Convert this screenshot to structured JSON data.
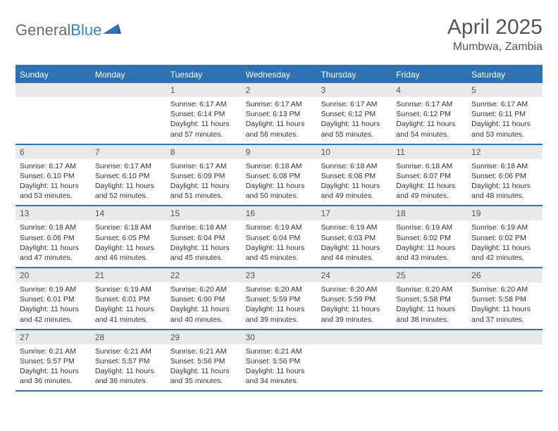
{
  "brand": {
    "name_a": "General",
    "name_b": "Blue"
  },
  "title": "April 2025",
  "location": "Mumbwa, Zambia",
  "colors": {
    "header_bg": "#2f72b3",
    "header_text": "#ffffff",
    "daynum_bg": "#e9e9e9",
    "border": "#2f72b3",
    "title_color": "#555555",
    "body_text": "#333333"
  },
  "day_headers": [
    "Sunday",
    "Monday",
    "Tuesday",
    "Wednesday",
    "Thursday",
    "Friday",
    "Saturday"
  ],
  "weeks": [
    [
      null,
      null,
      {
        "n": "1",
        "sr": "6:17 AM",
        "ss": "6:14 PM",
        "dl": "11 hours and 57 minutes."
      },
      {
        "n": "2",
        "sr": "6:17 AM",
        "ss": "6:13 PM",
        "dl": "11 hours and 56 minutes."
      },
      {
        "n": "3",
        "sr": "6:17 AM",
        "ss": "6:12 PM",
        "dl": "11 hours and 55 minutes."
      },
      {
        "n": "4",
        "sr": "6:17 AM",
        "ss": "6:12 PM",
        "dl": "11 hours and 54 minutes."
      },
      {
        "n": "5",
        "sr": "6:17 AM",
        "ss": "6:11 PM",
        "dl": "11 hours and 53 minutes."
      }
    ],
    [
      {
        "n": "6",
        "sr": "6:17 AM",
        "ss": "6:10 PM",
        "dl": "11 hours and 53 minutes."
      },
      {
        "n": "7",
        "sr": "6:17 AM",
        "ss": "6:10 PM",
        "dl": "11 hours and 52 minutes."
      },
      {
        "n": "8",
        "sr": "6:17 AM",
        "ss": "6:09 PM",
        "dl": "11 hours and 51 minutes."
      },
      {
        "n": "9",
        "sr": "6:18 AM",
        "ss": "6:08 PM",
        "dl": "11 hours and 50 minutes."
      },
      {
        "n": "10",
        "sr": "6:18 AM",
        "ss": "6:08 PM",
        "dl": "11 hours and 49 minutes."
      },
      {
        "n": "11",
        "sr": "6:18 AM",
        "ss": "6:07 PM",
        "dl": "11 hours and 49 minutes."
      },
      {
        "n": "12",
        "sr": "6:18 AM",
        "ss": "6:06 PM",
        "dl": "11 hours and 48 minutes."
      }
    ],
    [
      {
        "n": "13",
        "sr": "6:18 AM",
        "ss": "6:06 PM",
        "dl": "11 hours and 47 minutes."
      },
      {
        "n": "14",
        "sr": "6:18 AM",
        "ss": "6:05 PM",
        "dl": "11 hours and 46 minutes."
      },
      {
        "n": "15",
        "sr": "6:18 AM",
        "ss": "6:04 PM",
        "dl": "11 hours and 45 minutes."
      },
      {
        "n": "16",
        "sr": "6:19 AM",
        "ss": "6:04 PM",
        "dl": "11 hours and 45 minutes."
      },
      {
        "n": "17",
        "sr": "6:19 AM",
        "ss": "6:03 PM",
        "dl": "11 hours and 44 minutes."
      },
      {
        "n": "18",
        "sr": "6:19 AM",
        "ss": "6:02 PM",
        "dl": "11 hours and 43 minutes."
      },
      {
        "n": "19",
        "sr": "6:19 AM",
        "ss": "6:02 PM",
        "dl": "11 hours and 42 minutes."
      }
    ],
    [
      {
        "n": "20",
        "sr": "6:19 AM",
        "ss": "6:01 PM",
        "dl": "11 hours and 42 minutes."
      },
      {
        "n": "21",
        "sr": "6:19 AM",
        "ss": "6:01 PM",
        "dl": "11 hours and 41 minutes."
      },
      {
        "n": "22",
        "sr": "6:20 AM",
        "ss": "6:00 PM",
        "dl": "11 hours and 40 minutes."
      },
      {
        "n": "23",
        "sr": "6:20 AM",
        "ss": "5:59 PM",
        "dl": "11 hours and 39 minutes."
      },
      {
        "n": "24",
        "sr": "6:20 AM",
        "ss": "5:59 PM",
        "dl": "11 hours and 39 minutes."
      },
      {
        "n": "25",
        "sr": "6:20 AM",
        "ss": "5:58 PM",
        "dl": "11 hours and 38 minutes."
      },
      {
        "n": "26",
        "sr": "6:20 AM",
        "ss": "5:58 PM",
        "dl": "11 hours and 37 minutes."
      }
    ],
    [
      {
        "n": "27",
        "sr": "6:21 AM",
        "ss": "5:57 PM",
        "dl": "11 hours and 36 minutes."
      },
      {
        "n": "28",
        "sr": "6:21 AM",
        "ss": "5:57 PM",
        "dl": "11 hours and 36 minutes."
      },
      {
        "n": "29",
        "sr": "6:21 AM",
        "ss": "5:56 PM",
        "dl": "11 hours and 35 minutes."
      },
      {
        "n": "30",
        "sr": "6:21 AM",
        "ss": "5:56 PM",
        "dl": "11 hours and 34 minutes."
      },
      null,
      null,
      null
    ]
  ],
  "labels": {
    "sunrise": "Sunrise:",
    "sunset": "Sunset:",
    "daylight": "Daylight:"
  }
}
